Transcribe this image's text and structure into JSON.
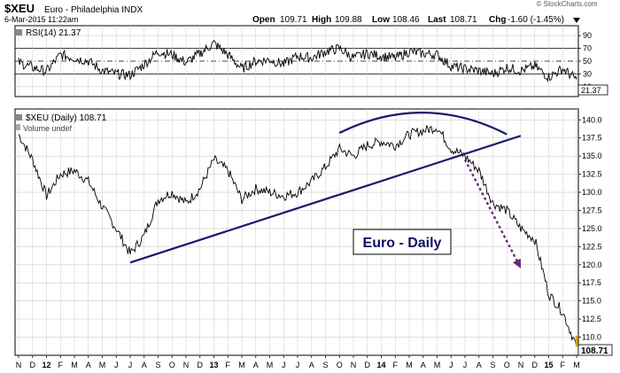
{
  "header": {
    "symbol": "$XEU",
    "name": "Euro - Philadelphia INDX",
    "timestamp": "6-Mar-2015 11:22am",
    "watermark": "© StockCharts.com",
    "quote": {
      "open_label": "Open",
      "open": "109.71",
      "high_label": "High",
      "high": "109.88",
      "low_label": "Low",
      "low": "108.46",
      "last_label": "Last",
      "last": "108.71",
      "chg_label": "Chg",
      "chg": "-1.60 (-1.45%)",
      "dropdown_icon": "triangle-down-icon"
    }
  },
  "rsi_panel": {
    "label": "RSI(14) 21.37",
    "current_value_label": "21.37",
    "current_value": 21.37,
    "ticks": [
      90,
      70,
      50,
      30,
      10
    ],
    "tick_labels": [
      "90",
      "70",
      "50",
      "30",
      "10"
    ],
    "ylim": [
      0,
      100
    ],
    "overbought": 70,
    "oversold": 30,
    "midline": 50
  },
  "price_panel": {
    "label": "$XEU (Daily) 108.71",
    "volume_label": "Volume undef",
    "annotation": "Euro - Daily",
    "last_value_label": "108.71",
    "last_value": 108.71,
    "ticks": [
      140,
      137.5,
      135,
      132.5,
      130,
      127.5,
      125,
      122.5,
      120,
      117.5,
      115,
      112.5,
      110
    ],
    "tick_labels": [
      "140.0",
      "137.5",
      "135.0",
      "132.5",
      "130.0",
      "127.5",
      "125.0",
      "122.5",
      "120.0",
      "117.5",
      "115.0",
      "112.5",
      "110.0"
    ],
    "ylim": [
      107.5,
      141.5
    ]
  },
  "x_axis": {
    "labels": [
      "N",
      "D",
      "12",
      "F",
      "M",
      "A",
      "M",
      "J",
      "J",
      "A",
      "S",
      "O",
      "N",
      "D",
      "13",
      "F",
      "M",
      "A",
      "M",
      "J",
      "J",
      "A",
      "S",
      "O",
      "N",
      "D",
      "14",
      "F",
      "M",
      "A",
      "M",
      "J",
      "J",
      "A",
      "S",
      "O",
      "N",
      "D",
      "15",
      "F",
      "M"
    ],
    "bold_labels": [
      "12",
      "13",
      "14",
      "15"
    ]
  },
  "chart_data": {
    "type": "line",
    "title": "$XEU Euro - Philadelphia INDX",
    "price_series": {
      "name": "$XEU (Daily)",
      "x": [
        "2011-11",
        "2011-12",
        "2012-01",
        "2012-02",
        "2012-03",
        "2012-04",
        "2012-05",
        "2012-06",
        "2012-07",
        "2012-08",
        "2012-09",
        "2012-10",
        "2012-11",
        "2012-12",
        "2013-01",
        "2013-02",
        "2013-03",
        "2013-04",
        "2013-05",
        "2013-06",
        "2013-07",
        "2013-08",
        "2013-09",
        "2013-10",
        "2013-11",
        "2013-12",
        "2014-01",
        "2014-02",
        "2014-03",
        "2014-04",
        "2014-05",
        "2014-06",
        "2014-07",
        "2014-08",
        "2014-09",
        "2014-10",
        "2014-11",
        "2014-12",
        "2015-01",
        "2015-02",
        "2015-03"
      ],
      "values": [
        138.0,
        134.5,
        129.5,
        132.5,
        133.0,
        131.5,
        128.0,
        125.0,
        121.5,
        124.0,
        129.0,
        130.0,
        128.5,
        130.5,
        134.5,
        133.0,
        129.0,
        130.5,
        130.0,
        129.5,
        130.0,
        131.5,
        133.5,
        136.0,
        135.0,
        136.5,
        137.0,
        136.5,
        138.0,
        138.5,
        139.0,
        136.0,
        135.0,
        133.0,
        128.5,
        127.5,
        125.0,
        123.5,
        116.0,
        113.5,
        108.71
      ]
    },
    "rsi_series": {
      "name": "RSI(14)",
      "x": [
        "2011-11",
        "2011-12",
        "2012-01",
        "2012-02",
        "2012-03",
        "2012-04",
        "2012-05",
        "2012-06",
        "2012-07",
        "2012-08",
        "2012-09",
        "2012-10",
        "2012-11",
        "2012-12",
        "2013-01",
        "2013-02",
        "2013-03",
        "2013-04",
        "2013-05",
        "2013-06",
        "2013-07",
        "2013-08",
        "2013-09",
        "2013-10",
        "2013-11",
        "2013-12",
        "2014-01",
        "2014-02",
        "2014-03",
        "2014-04",
        "2014-05",
        "2014-06",
        "2014-07",
        "2014-08",
        "2014-09",
        "2014-10",
        "2014-11",
        "2014-12",
        "2015-01",
        "2015-02",
        "2015-03"
      ],
      "values": [
        48,
        40,
        34,
        60,
        55,
        50,
        35,
        30,
        28,
        45,
        65,
        60,
        48,
        62,
        78,
        60,
        38,
        50,
        52,
        45,
        58,
        55,
        65,
        70,
        55,
        62,
        58,
        55,
        65,
        62,
        60,
        42,
        38,
        35,
        30,
        40,
        35,
        42,
        25,
        38,
        21.37
      ]
    },
    "ylim": [
      107.5,
      141.5
    ],
    "rsi_ylim": [
      0,
      100
    ],
    "grid": true,
    "annotations": [
      {
        "type": "trendline",
        "from": {
          "x": "2012-07",
          "y": 120.3
        },
        "to": {
          "x": "2014-11",
          "y": 137.8
        }
      },
      {
        "type": "arc",
        "from": {
          "x": "2013-10",
          "y": 138.2
        },
        "peak": {
          "x": "2014-04",
          "y": 141.0
        },
        "to": {
          "x": "2014-10",
          "y": 138.0
        }
      },
      {
        "type": "dotted-arrow",
        "from": {
          "x": "2014-07",
          "y": 134.5
        },
        "to": {
          "x": "2014-11",
          "y": 119.5
        }
      }
    ]
  },
  "colors": {
    "price_line": "#000000",
    "annotation_line": "#1a1a6e",
    "arrow": "#6b2a7a",
    "last_price_bar": "#d4a800",
    "grid": "#cccccc"
  }
}
